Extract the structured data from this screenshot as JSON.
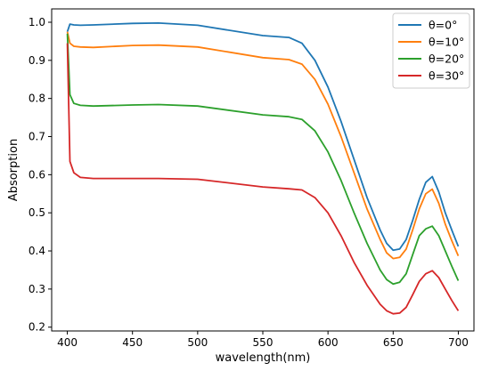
{
  "chart_data": {
    "type": "line",
    "title": "",
    "xlabel": "wavelength(nm)",
    "ylabel": "Absorption",
    "xlim": [
      388,
      712
    ],
    "ylim": [
      0.19,
      1.035
    ],
    "xticks": [
      400,
      450,
      500,
      550,
      600,
      650,
      700
    ],
    "yticks": [
      0.2,
      0.3,
      0.4,
      0.5,
      0.6,
      0.7,
      0.8,
      0.9,
      1.0
    ],
    "ytick_labels": [
      "0.2",
      "0.3",
      "0.4",
      "0.5",
      "0.6",
      "0.7",
      "0.8",
      "0.9",
      "1.0"
    ],
    "grid": false,
    "legend_position": "top-right",
    "x": [
      400,
      402,
      405,
      410,
      420,
      450,
      470,
      500,
      550,
      570,
      580,
      590,
      600,
      610,
      620,
      630,
      640,
      645,
      650,
      655,
      660,
      665,
      670,
      675,
      680,
      685,
      690,
      695,
      700
    ],
    "series": [
      {
        "name": "θ=0°",
        "color": "#1f77b4",
        "values": [
          0.975,
          0.995,
          0.993,
          0.992,
          0.993,
          0.997,
          0.998,
          0.992,
          0.965,
          0.96,
          0.945,
          0.9,
          0.83,
          0.74,
          0.64,
          0.54,
          0.455,
          0.42,
          0.402,
          0.405,
          0.43,
          0.48,
          0.535,
          0.58,
          0.595,
          0.555,
          0.5,
          0.455,
          0.412
        ]
      },
      {
        "name": "θ=10°",
        "color": "#ff7f0e",
        "values": [
          0.975,
          0.945,
          0.937,
          0.935,
          0.934,
          0.939,
          0.94,
          0.935,
          0.907,
          0.902,
          0.89,
          0.85,
          0.785,
          0.7,
          0.605,
          0.51,
          0.43,
          0.395,
          0.38,
          0.383,
          0.405,
          0.455,
          0.51,
          0.55,
          0.562,
          0.525,
          0.47,
          0.427,
          0.387
        ]
      },
      {
        "name": "θ=20°",
        "color": "#2ca02c",
        "values": [
          0.97,
          0.81,
          0.787,
          0.782,
          0.78,
          0.783,
          0.784,
          0.78,
          0.757,
          0.752,
          0.745,
          0.715,
          0.66,
          0.585,
          0.5,
          0.42,
          0.35,
          0.325,
          0.313,
          0.318,
          0.34,
          0.39,
          0.44,
          0.458,
          0.465,
          0.44,
          0.4,
          0.36,
          0.322
        ]
      },
      {
        "name": "θ=30°",
        "color": "#d62728",
        "values": [
          0.945,
          0.635,
          0.605,
          0.593,
          0.59,
          0.59,
          0.59,
          0.588,
          0.568,
          0.563,
          0.56,
          0.54,
          0.5,
          0.44,
          0.37,
          0.31,
          0.26,
          0.243,
          0.235,
          0.237,
          0.252,
          0.285,
          0.32,
          0.34,
          0.348,
          0.33,
          0.3,
          0.27,
          0.243
        ]
      }
    ]
  }
}
